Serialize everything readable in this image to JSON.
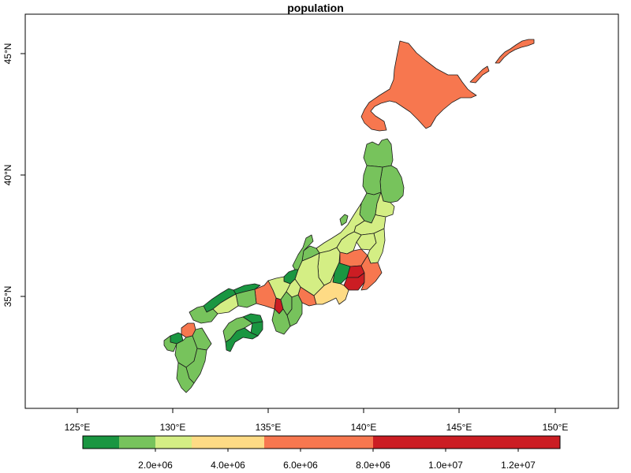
{
  "title": "population",
  "axes": {
    "x_ticks": [
      "125°E",
      "130°E",
      "135°E",
      "140°E",
      "145°E",
      "150°E"
    ],
    "y_ticks": [
      "35°N",
      "40°N",
      "45°N"
    ]
  },
  "legend": {
    "colors": [
      "#1a9641",
      "#77c35c",
      "#d4ee84",
      "#fedb85",
      "#f7774f",
      "#cb1d23"
    ],
    "tick_labels": [
      "2.0e+06",
      "4.0e+06",
      "6.0e+06",
      "8.0e+06",
      "1.0e+07",
      "1.2e+07"
    ]
  },
  "colors": {
    "very_low": "#1a9641",
    "low": "#77c35c",
    "mid_low": "#d4ee84",
    "mid": "#fedb85",
    "high": "#f7774f",
    "very_high": "#cb1d23"
  }
}
